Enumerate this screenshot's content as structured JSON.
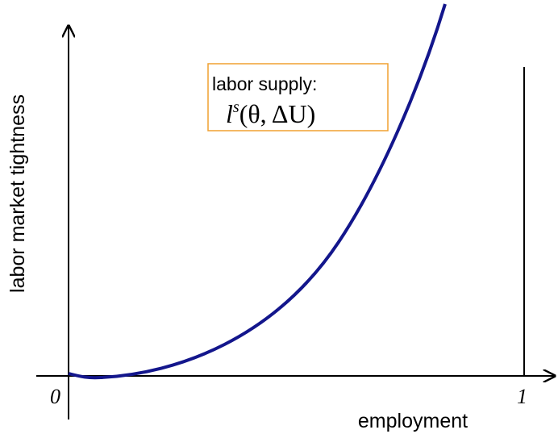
{
  "axes": {
    "x_label": "employment",
    "y_label": "labor market tightness",
    "x_origin_label": "0",
    "x_end_label": "1"
  },
  "annotation": {
    "title": "labor supply:",
    "formula": {
      "base": "l",
      "superscript": "s",
      "args": "(θ, ΔU)"
    }
  }
}
